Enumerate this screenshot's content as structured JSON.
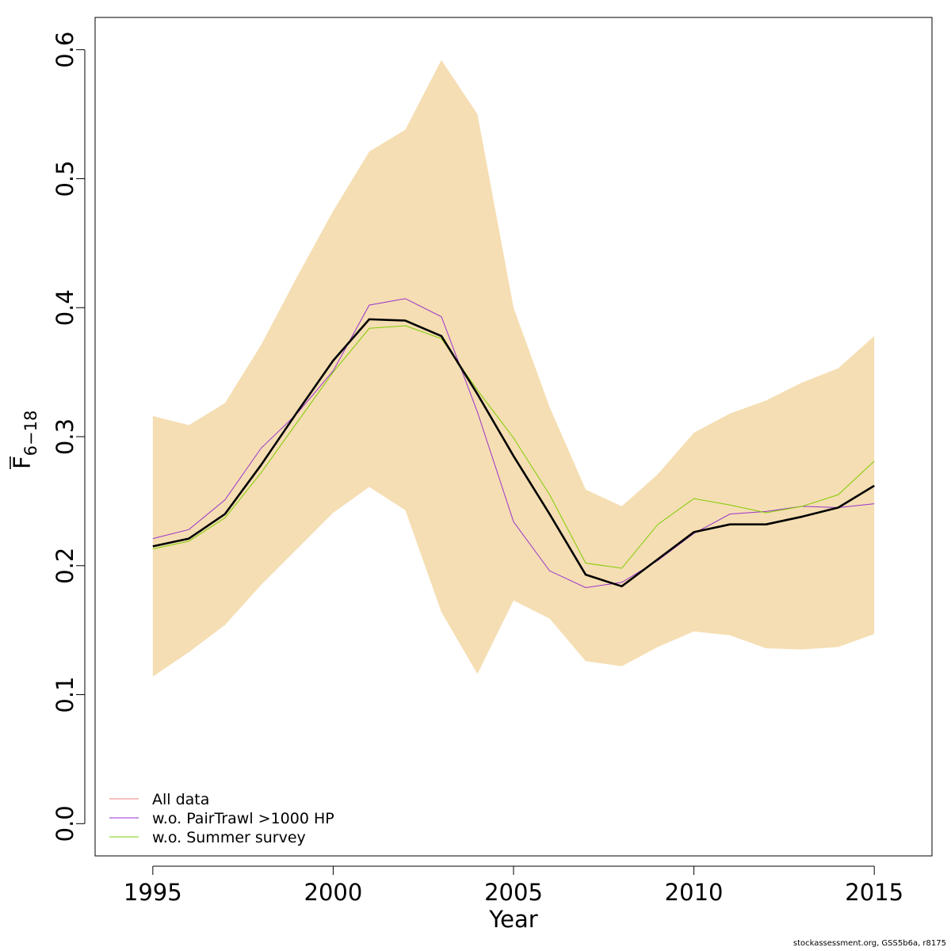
{
  "chart_data": {
    "type": "line",
    "xlabel": "Year",
    "ylabel_base": "F",
    "ylabel_subscript": "6−18",
    "xlim": [
      1993.4,
      2016.6
    ],
    "ylim": [
      -0.025,
      0.625
    ],
    "x_ticks": [
      1995,
      2000,
      2005,
      2010,
      2015
    ],
    "y_ticks": [
      0.0,
      0.1,
      0.2,
      0.3,
      0.4,
      0.5,
      0.6
    ],
    "y_tick_labels": [
      "0.0",
      "0.1",
      "0.2",
      "0.3",
      "0.4",
      "0.5",
      "0.6"
    ],
    "grid": false,
    "legend_position": "bottom-left",
    "x": [
      1995,
      1996,
      1997,
      1998,
      1999,
      2000,
      2001,
      2002,
      2003,
      2004,
      2005,
      2006,
      2007,
      2008,
      2009,
      2010,
      2011,
      2012,
      2013,
      2014,
      2015
    ],
    "confidence_band": {
      "color": "#f5deb3",
      "lower": [
        0.114,
        0.133,
        0.154,
        0.185,
        0.213,
        0.241,
        0.261,
        0.243,
        0.164,
        0.116,
        0.173,
        0.159,
        0.126,
        0.122,
        0.137,
        0.149,
        0.146,
        0.136,
        0.135,
        0.137,
        0.147
      ],
      "upper": [
        0.316,
        0.309,
        0.326,
        0.371,
        0.424,
        0.475,
        0.521,
        0.538,
        0.592,
        0.55,
        0.4,
        0.323,
        0.259,
        0.246,
        0.271,
        0.303,
        0.318,
        0.328,
        0.342,
        0.353,
        0.378
      ]
    },
    "estimate": {
      "color": "#000000",
      "values": [
        0.215,
        0.221,
        0.24,
        0.278,
        0.319,
        0.359,
        0.391,
        0.39,
        0.378,
        0.333,
        0.285,
        0.24,
        0.193,
        0.184,
        0.205,
        0.226,
        0.232,
        0.232,
        0.238,
        0.245,
        0.262
      ]
    },
    "series": [
      {
        "name": "All data",
        "color": "#f08080",
        "values": [
          0.215,
          0.221,
          0.24,
          0.278,
          0.319,
          0.359,
          0.391,
          0.39,
          0.378,
          0.333,
          0.285,
          0.24,
          0.193,
          0.184,
          0.205,
          0.226,
          0.232,
          0.232,
          0.238,
          0.245,
          0.262
        ]
      },
      {
        "name": "w.o. PairTrawl >1000 HP",
        "color": "#9932cc",
        "values": [
          0.221,
          0.228,
          0.251,
          0.291,
          0.318,
          0.351,
          0.402,
          0.407,
          0.393,
          0.319,
          0.234,
          0.196,
          0.183,
          0.187,
          0.204,
          0.225,
          0.24,
          0.242,
          0.246,
          0.245,
          0.248
        ]
      },
      {
        "name": "w.o. Summer survey",
        "color": "#7fcc00",
        "values": [
          0.213,
          0.219,
          0.237,
          0.272,
          0.311,
          0.35,
          0.384,
          0.386,
          0.376,
          0.336,
          0.299,
          0.255,
          0.202,
          0.198,
          0.232,
          0.252,
          0.247,
          0.241,
          0.246,
          0.255,
          0.281
        ]
      }
    ]
  },
  "footer": {
    "credit": "stockassessment.org, GSS5b6a, r8175"
  }
}
